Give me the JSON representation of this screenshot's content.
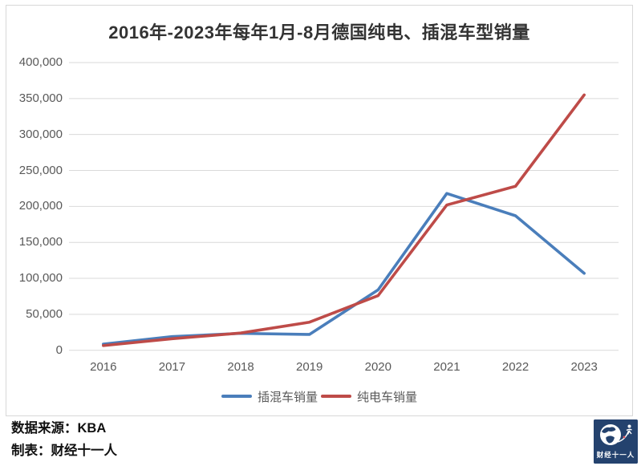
{
  "chart_data": {
    "type": "line",
    "title": "2016年-2023年每年1月-8月德国纯电、插混车型销量",
    "categories": [
      "2016",
      "2017",
      "2018",
      "2019",
      "2020",
      "2021",
      "2022",
      "2023"
    ],
    "series": [
      {
        "name": "插混车销量",
        "color": "#4a7ebb",
        "values": [
          8500,
          19000,
          23500,
          22000,
          84000,
          218000,
          187000,
          107000
        ]
      },
      {
        "name": "纯电车销量",
        "color": "#be4b48",
        "values": [
          6500,
          16000,
          24000,
          39000,
          76000,
          202000,
          228000,
          355000
        ]
      }
    ],
    "ylim": [
      0,
      400000
    ],
    "yticks": [
      0,
      50000,
      100000,
      150000,
      200000,
      250000,
      300000,
      350000,
      400000
    ],
    "ytick_labels": [
      "0",
      "50,000",
      "100,000",
      "150,000",
      "200,000",
      "250,000",
      "300,000",
      "350,000",
      "400,000"
    ],
    "grid": true,
    "grid_color": "#d9d9d9",
    "axis_text_color": "#595959",
    "legend_position": "bottom"
  },
  "footer": {
    "source": "数据来源：KBA",
    "credit": "制表：财经十一人"
  },
  "logo": {
    "label": "财经十一人",
    "bg_color": "#24426e"
  }
}
